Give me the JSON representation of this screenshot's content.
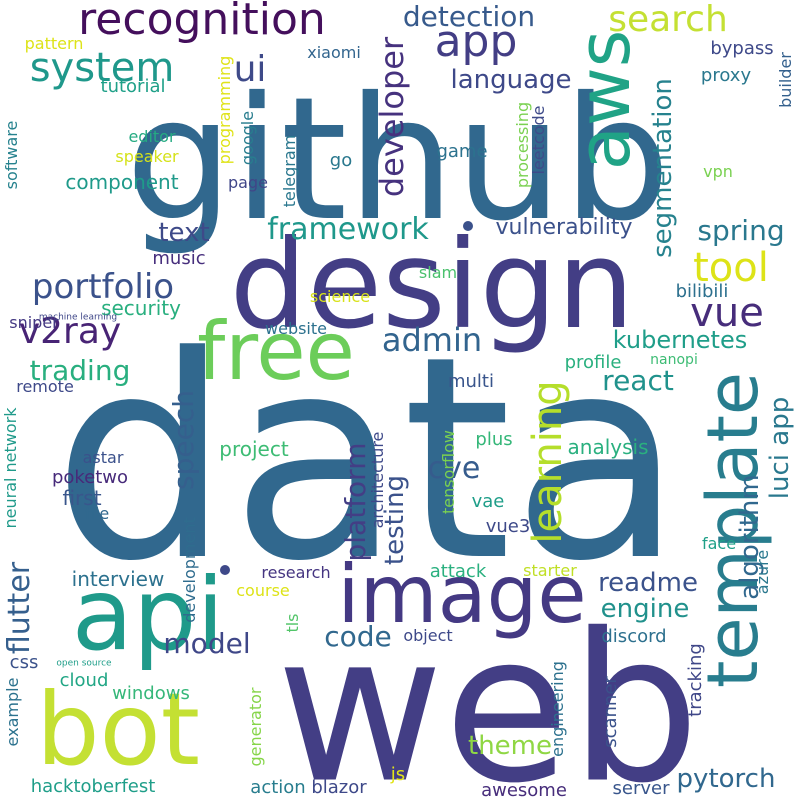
{
  "words": [
    {
      "text": "data",
      "color": "#31688e"
    },
    {
      "text": "web",
      "color": "#433e85"
    },
    {
      "text": "github",
      "color": "#31688e"
    },
    {
      "text": "design",
      "color": "#433e85"
    },
    {
      "text": "api",
      "color": "#1f9a8a"
    },
    {
      "text": "bot",
      "color": "#c4e033"
    },
    {
      "text": "image",
      "color": "#443983"
    },
    {
      "text": "free",
      "color": "#6ccd5a"
    },
    {
      "text": "template",
      "color": "#287d8e"
    },
    {
      "text": "aws",
      "color": "#20a386"
    },
    {
      "text": "app",
      "color": "#433e85"
    },
    {
      "text": "recognition",
      "color": "#440f5c"
    },
    {
      "text": "system",
      "color": "#1f988b"
    },
    {
      "text": "search",
      "color": "#c4e033"
    },
    {
      "text": "detection",
      "color": "#375a8c"
    },
    {
      "text": "ui",
      "color": "#3e4a89"
    },
    {
      "text": "language",
      "color": "#3e4989"
    },
    {
      "text": "developer",
      "color": "#46327e"
    },
    {
      "text": "vue",
      "color": "#472d7b"
    },
    {
      "text": "framework",
      "color": "#1f988b"
    },
    {
      "text": "tool",
      "color": "#dde318"
    },
    {
      "text": "portfolio",
      "color": "#3b528b"
    },
    {
      "text": "v2ray",
      "color": "#482475"
    },
    {
      "text": "admin",
      "color": "#32648e"
    },
    {
      "text": "text",
      "color": "#3e4a89"
    },
    {
      "text": "spring",
      "color": "#2a788e"
    },
    {
      "text": "segmentation",
      "color": "#26828e"
    },
    {
      "text": "vulnerability",
      "color": "#3b518b"
    },
    {
      "text": "learning",
      "color": "#b5de2b"
    },
    {
      "text": "kubernetes",
      "color": "#1f9e89"
    },
    {
      "text": "react",
      "color": "#20928c"
    },
    {
      "text": "luci app",
      "color": "#2a788e"
    },
    {
      "text": "algorithm",
      "color": "#31688e"
    },
    {
      "text": "platform",
      "color": "#433e85"
    },
    {
      "text": "testing",
      "color": "#3b528b"
    },
    {
      "text": "speech",
      "color": "#355f8d"
    },
    {
      "text": "cve",
      "color": "#365c8d"
    },
    {
      "text": "flutter",
      "color": "#355f8d"
    },
    {
      "text": "trading",
      "color": "#29af7f"
    },
    {
      "text": "security",
      "color": "#29af7f"
    },
    {
      "text": "engine",
      "color": "#21918c"
    },
    {
      "text": "readme",
      "color": "#3b528b"
    },
    {
      "text": "code",
      "color": "#31688e"
    },
    {
      "text": "model",
      "color": "#3f4788"
    },
    {
      "text": "pytorch",
      "color": "#31688e"
    },
    {
      "text": "theme",
      "color": "#8fd744"
    },
    {
      "text": "interview",
      "color": "#2c718e"
    },
    {
      "text": "component",
      "color": "#1f9a8a"
    },
    {
      "text": "music",
      "color": "#472f7d"
    },
    {
      "text": "game",
      "color": "#2c728e"
    },
    {
      "text": "analysis",
      "color": "#2ab07f"
    },
    {
      "text": "project",
      "color": "#3dbc74"
    },
    {
      "text": "bilibili",
      "color": "#2d708e"
    },
    {
      "text": "multi",
      "color": "#39558c"
    },
    {
      "text": "attack",
      "color": "#2ab07f"
    },
    {
      "text": "profile",
      "color": "#2ab07f"
    },
    {
      "text": "website",
      "color": "#2c718e"
    },
    {
      "text": "science",
      "color": "#d8e219"
    },
    {
      "text": "slam",
      "color": "#4ac16d"
    },
    {
      "text": "plus",
      "color": "#35b779"
    },
    {
      "text": "vae",
      "color": "#1f9e89"
    },
    {
      "text": "vue3",
      "color": "#3e4a89"
    },
    {
      "text": "first",
      "color": "#39568c"
    },
    {
      "text": "poketwo",
      "color": "#472a7a"
    },
    {
      "text": "astar",
      "color": "#3b518b"
    },
    {
      "text": "file",
      "color": "#31688e"
    },
    {
      "text": "xiaomi",
      "color": "#32658e"
    },
    {
      "text": "bypass",
      "color": "#3e4989"
    },
    {
      "text": "proxy",
      "color": "#2a788e"
    },
    {
      "text": "tutorial",
      "color": "#1fa088"
    },
    {
      "text": "pattern",
      "color": "#dde318"
    },
    {
      "text": "editor",
      "color": "#25ab82"
    },
    {
      "text": "speaker",
      "color": "#d5e21a"
    },
    {
      "text": "page",
      "color": "#404688"
    },
    {
      "text": "go",
      "color": "#2a788e"
    },
    {
      "text": "google",
      "color": "#287d8e"
    },
    {
      "text": "leetcode",
      "color": "#3e4a89"
    },
    {
      "text": "vpn",
      "color": "#7ad151"
    },
    {
      "text": "processing",
      "color": "#7ad151"
    },
    {
      "text": "telegram",
      "color": "#2a778e"
    },
    {
      "text": "programming",
      "color": "#dfe318"
    },
    {
      "text": "software",
      "color": "#26828e"
    },
    {
      "text": "builder",
      "color": "#34608d"
    },
    {
      "text": "sniper",
      "color": "#443983"
    },
    {
      "text": "machine learning",
      "color": "#3f4788"
    },
    {
      "text": "remote",
      "color": "#3e4989"
    },
    {
      "text": "neural network",
      "color": "#1f9a8a"
    },
    {
      "text": "architecture",
      "color": "#3e4989"
    },
    {
      "text": "tensorflow",
      "color": "#7ad151"
    },
    {
      "text": "development",
      "color": "#2f6c8e"
    },
    {
      "text": "research",
      "color": "#453581"
    },
    {
      "text": "course",
      "color": "#dde318"
    },
    {
      "text": "tls",
      "color": "#52c569"
    },
    {
      "text": "object",
      "color": "#3e4989"
    },
    {
      "text": "discord",
      "color": "#2d708e"
    },
    {
      "text": "face",
      "color": "#1fa088"
    },
    {
      "text": "azure",
      "color": "#2a788e"
    },
    {
      "text": "starter",
      "color": "#c0df25"
    },
    {
      "text": "css",
      "color": "#3b528b"
    },
    {
      "text": "open source",
      "color": "#1f9e89"
    },
    {
      "text": "cloud",
      "color": "#21a685"
    },
    {
      "text": "windows",
      "color": "#35b779"
    },
    {
      "text": "example",
      "color": "#2c728e"
    },
    {
      "text": "hacktoberfest",
      "color": "#1f9e89"
    },
    {
      "text": "generator",
      "color": "#86d549"
    },
    {
      "text": "action",
      "color": "#287d8e"
    },
    {
      "text": "blazor",
      "color": "#3e4989"
    },
    {
      "text": "js",
      "color": "#e2e418"
    },
    {
      "text": "awesome",
      "color": "#472d7b"
    },
    {
      "text": "engineering",
      "color": "#2c718e"
    },
    {
      "text": "scanner",
      "color": "#3b528b"
    },
    {
      "text": "server",
      "color": "#39568c"
    },
    {
      "text": "tracking",
      "color": "#3f4788"
    },
    {
      "text": "nanopi",
      "color": "#3dbc74"
    }
  ]
}
